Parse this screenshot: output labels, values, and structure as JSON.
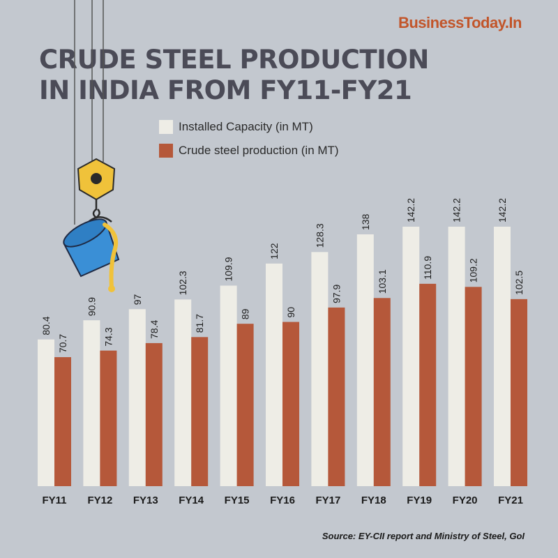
{
  "brand": "BusinessToday.In",
  "title": "CRUDE STEEL PRODUCTION IN INDIA FROM FY11-FY21",
  "source": "Source: EY-CII report and Ministry of Steel, GoI",
  "chart_data": {
    "type": "bar",
    "title": "CRUDE STEEL PRODUCTION IN INDIA FROM FY11-FY21",
    "categories": [
      "FY11",
      "FY12",
      "FY13",
      "FY14",
      "FY15",
      "FY16",
      "FY17",
      "FY18",
      "FY19",
      "FY20",
      "FY21"
    ],
    "series": [
      {
        "name": "Installed Capacity (in MT)",
        "color": "#eeede6",
        "values": [
          80.4,
          90.9,
          97,
          102.3,
          109.9,
          122,
          128.3,
          138,
          142.2,
          142.2,
          142.2
        ]
      },
      {
        "name": "Crude steel production (in MT)",
        "color": "#b5583a",
        "values": [
          70.7,
          74.3,
          78.4,
          81.7,
          89,
          90,
          97.9,
          103.1,
          110.9,
          109.2,
          102.5
        ]
      }
    ],
    "value_labels": [
      [
        "80.4",
        "90.9",
        "97",
        "102.3",
        "109.9",
        "122",
        "128.3",
        "138",
        "142.2",
        "142.2",
        "142.2"
      ],
      [
        "70.7",
        "74.3",
        "78.4",
        "81.7",
        "89",
        "90",
        "97.9",
        "103.1",
        "110.9",
        "109.2",
        "102.5"
      ]
    ],
    "ylim": [
      0,
      142.2
    ],
    "legend": "top",
    "grid": false
  }
}
